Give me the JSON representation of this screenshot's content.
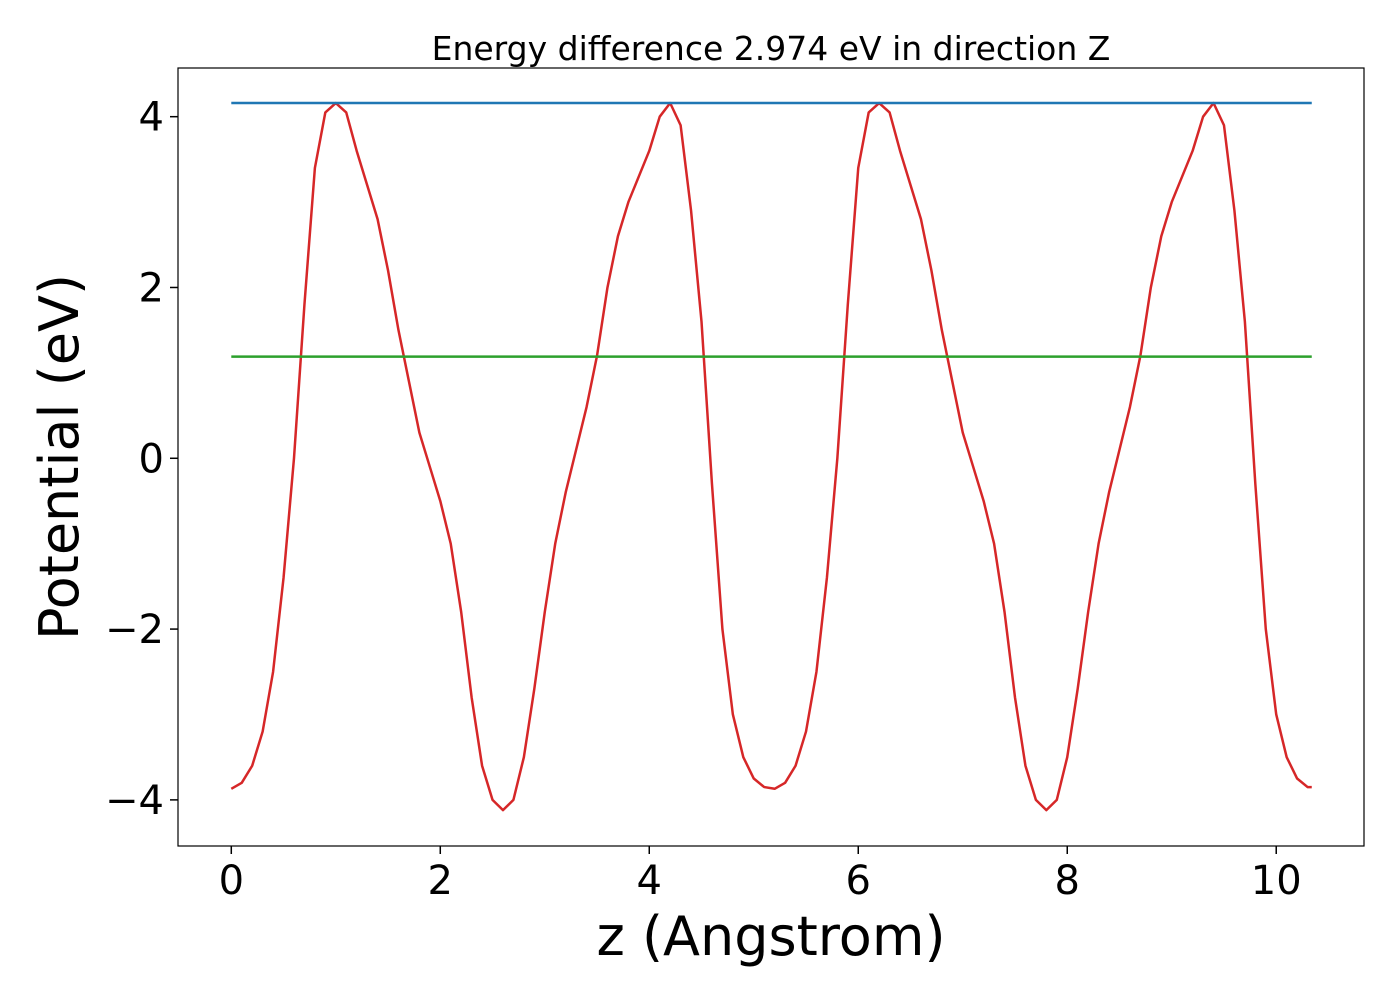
{
  "chart_data": {
    "type": "line",
    "title": "Energy difference 2.974 eV in direction Z",
    "xlabel": "z (Angstrom)",
    "ylabel": "Potential (eV)",
    "xlim": [
      -0.51,
      10.84
    ],
    "ylim": [
      -4.54,
      4.57
    ],
    "xticks": [
      0,
      2,
      4,
      6,
      8,
      10
    ],
    "yticks": [
      {
        "value": -4,
        "label": "−4"
      },
      {
        "value": -2,
        "label": "−2"
      },
      0,
      2,
      4
    ],
    "series": [
      {
        "color": "#d62728",
        "x": [
          0,
          0.1,
          0.2,
          0.3,
          0.4,
          0.5,
          0.6,
          0.7,
          0.8,
          0.9,
          1.0,
          1.1,
          1.2,
          1.3,
          1.4,
          1.5,
          1.6,
          1.7,
          1.8,
          1.9,
          2.0,
          2.1,
          2.2,
          2.3,
          2.4,
          2.5,
          2.6,
          2.7,
          2.8,
          2.9,
          3.0,
          3.1,
          3.2,
          3.3,
          3.4,
          3.5,
          3.6,
          3.7,
          3.8,
          3.9,
          4.0,
          4.1,
          4.2,
          4.3,
          4.4,
          4.5,
          4.6,
          4.7,
          4.8,
          4.9,
          5.0,
          5.1,
          5.2,
          5.3,
          5.4,
          5.5,
          5.6,
          5.7,
          5.8,
          5.9,
          6.0,
          6.1,
          6.2,
          6.3,
          6.4,
          6.5,
          6.6,
          6.7,
          6.8,
          6.9,
          7.0,
          7.1,
          7.2,
          7.3,
          7.4,
          7.5,
          7.6,
          7.7,
          7.8,
          7.9,
          8.0,
          8.1,
          8.2,
          8.3,
          8.4,
          8.5,
          8.6,
          8.7,
          8.8,
          8.9,
          9.0,
          9.1,
          9.2,
          9.3,
          9.4,
          9.5,
          9.6,
          9.7,
          9.8,
          9.9,
          10.0,
          10.1,
          10.2,
          10.3,
          10.34
        ],
        "values": [
          -3.87,
          -3.8,
          -3.6,
          -3.2,
          -2.5,
          -1.4,
          0,
          1.8,
          3.4,
          4.05,
          4.16,
          4.05,
          3.6,
          3.2,
          2.8,
          2.2,
          1.5,
          0.9,
          0.3,
          -0.1,
          -0.5,
          -1.0,
          -1.8,
          -2.8,
          -3.6,
          -4.0,
          -4.12,
          -4.0,
          -3.5,
          -2.7,
          -1.8,
          -1.0,
          -0.4,
          0.1,
          0.6,
          1.2,
          2.0,
          2.6,
          3.0,
          3.3,
          3.6,
          4.0,
          4.16,
          3.9,
          2.9,
          1.6,
          -0.3,
          -2.0,
          -3.0,
          -3.5,
          -3.75,
          -3.85,
          -3.87,
          -3.8,
          -3.6,
          -3.2,
          -2.5,
          -1.4,
          0,
          1.8,
          3.4,
          4.05,
          4.16,
          4.05,
          3.6,
          3.2,
          2.8,
          2.2,
          1.5,
          0.9,
          0.3,
          -0.1,
          -0.5,
          -1.0,
          -1.8,
          -2.8,
          -3.6,
          -4.0,
          -4.12,
          -4.0,
          -3.5,
          -2.7,
          -1.8,
          -1.0,
          -0.4,
          0.1,
          0.6,
          1.2,
          2.0,
          2.6,
          3.0,
          3.3,
          3.6,
          4.0,
          4.16,
          3.9,
          2.9,
          1.6,
          -0.3,
          -2.0,
          -3.0,
          -3.5,
          -3.75,
          -3.85,
          -3.85
        ]
      },
      {
        "color": "#1f77b4",
        "x": [
          0,
          10.34
        ],
        "values": [
          4.16,
          4.16
        ]
      },
      {
        "color": "#2ca02c",
        "x": [
          0,
          10.34
        ],
        "values": [
          1.19,
          1.19
        ]
      }
    ]
  }
}
